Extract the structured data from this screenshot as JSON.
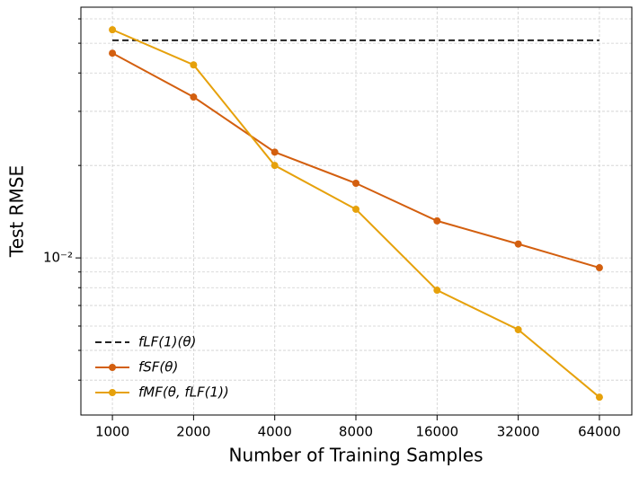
{
  "chart_data": {
    "type": "line",
    "xlabel": "Number of Training Samples",
    "ylabel": "Test RMSE",
    "x": [
      1000,
      2000,
      4000,
      8000,
      16000,
      32000,
      64000
    ],
    "xscale": "log",
    "yscale": "log",
    "grid": true,
    "legend": "lower left",
    "xlim": [
      764,
      84400
    ],
    "ylim": [
      0.00308,
      0.0655
    ],
    "xticks": [
      1000,
      2000,
      4000,
      8000,
      16000,
      32000,
      64000
    ],
    "yticks": [
      {
        "value": 0.01,
        "label": "10⁻²"
      }
    ],
    "yminor_ticks": [
      0.004,
      0.005,
      0.006,
      0.007,
      0.008,
      0.009,
      0.02,
      0.03,
      0.04,
      0.05,
      0.06
    ],
    "series": [
      {
        "name": "fLF(1)(θ)",
        "color": "#222222",
        "dashed": true,
        "markers": false,
        "values": [
          0.0511,
          0.0511,
          0.0511,
          0.0511,
          0.0511,
          0.0511,
          0.0511
        ]
      },
      {
        "name": "fSF(θ)",
        "color": "#d35f0f",
        "dashed": false,
        "markers": true,
        "values": [
          0.0464,
          0.0334,
          0.0221,
          0.0175,
          0.0132,
          0.0111,
          0.00929
        ]
      },
      {
        "name": "fMF(θ, fLF(1))",
        "color": "#e6a10b",
        "dashed": false,
        "markers": true,
        "values": [
          0.0553,
          0.0425,
          0.02,
          0.0144,
          0.00785,
          0.00584,
          0.00352
        ]
      }
    ]
  }
}
